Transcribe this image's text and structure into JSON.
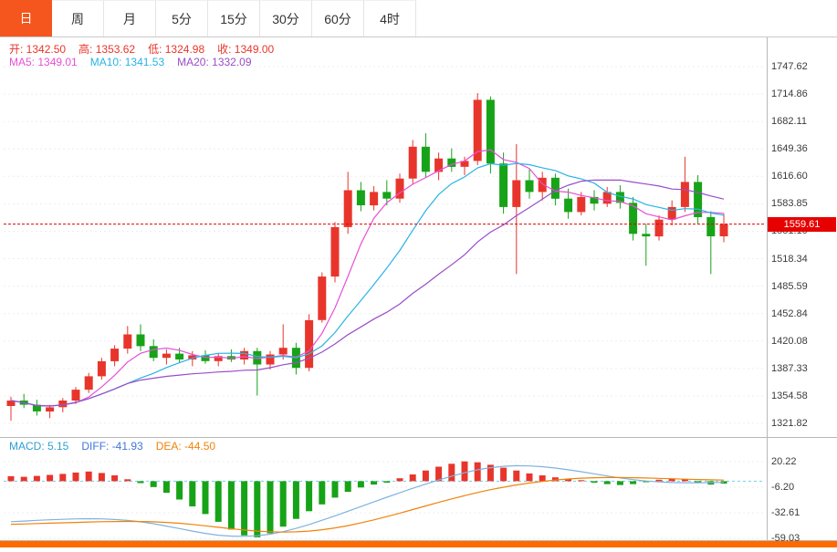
{
  "colors": {
    "up": "#e8352b",
    "down": "#17a318",
    "ohlc_text": "#e8352b",
    "ma5": "#e750d8",
    "ma10": "#29b3e6",
    "ma20": "#9a4dc8",
    "diff_line": "#7fb2e0",
    "dea_line": "#f0830a",
    "price_line": "#e60000",
    "tag_bg": "#e60000",
    "active_tab": "#f4561e",
    "macd_zero": "#6fd0e8",
    "bottom_bar": "#ff6a00"
  },
  "tabs": [
    {
      "key": "day",
      "label": "日",
      "active": true
    },
    {
      "key": "week",
      "label": "周",
      "active": false
    },
    {
      "key": "month",
      "label": "月",
      "active": false
    },
    {
      "key": "5min",
      "label": "5分",
      "active": false
    },
    {
      "key": "15min",
      "label": "15分",
      "active": false
    },
    {
      "key": "30min",
      "label": "30分",
      "active": false
    },
    {
      "key": "60min",
      "label": "60分",
      "active": false
    },
    {
      "key": "4hour",
      "label": "4时",
      "active": false
    }
  ],
  "info": {
    "ohlc": [
      {
        "key": "open",
        "label": "开",
        "value": "1342.50"
      },
      {
        "key": "high",
        "label": "高",
        "value": "1353.62"
      },
      {
        "key": "low",
        "label": "低",
        "value": "1324.98"
      },
      {
        "key": "close",
        "label": "收",
        "value": "1349.00"
      }
    ],
    "ma": [
      {
        "key": "ma5",
        "label": "MA5",
        "value": "1349.01",
        "color": "#e750d8"
      },
      {
        "key": "ma10",
        "label": "MA10",
        "value": "1341.53",
        "color": "#29b3e6"
      },
      {
        "key": "ma20",
        "label": "MA20",
        "value": "1332.09",
        "color": "#9a4dc8"
      }
    ],
    "macd": [
      {
        "key": "macd",
        "label": "MACD",
        "value": "5.15",
        "color": "#2e9fd3"
      },
      {
        "key": "diff",
        "label": "DIFF",
        "value": "-41.93",
        "color": "#4076d8"
      },
      {
        "key": "dea",
        "label": "DEA",
        "value": "-44.50",
        "color": "#f0830a"
      }
    ]
  },
  "axis": {
    "price_labels": [
      "1747.62",
      "1714.86",
      "1682.11",
      "1649.36",
      "1616.60",
      "1583.85",
      "1551.10",
      "1518.34",
      "1485.59",
      "1452.84",
      "1420.08",
      "1387.33",
      "1354.58",
      "1321.82"
    ],
    "macd_labels": [
      "20.22",
      "-6.20",
      "-32.61",
      "-59.03"
    ]
  },
  "chart": {
    "last_price_label": "1559.61"
  },
  "chart_data": {
    "type": "candlestick",
    "period": "日",
    "y_ticks": [
      1747.62,
      1714.86,
      1682.11,
      1649.36,
      1616.6,
      1583.85,
      1551.1,
      1518.34,
      1485.59,
      1452.84,
      1420.08,
      1387.33,
      1354.58,
      1321.82
    ],
    "last_price": 1559.61,
    "ma_periods": [
      5,
      10,
      20
    ],
    "candles": [
      [
        1342.5,
        1353.62,
        1324.98,
        1349.0
      ],
      [
        1349,
        1357,
        1340,
        1344
      ],
      [
        1344,
        1350,
        1331,
        1336
      ],
      [
        1336,
        1344,
        1328,
        1341
      ],
      [
        1341,
        1352,
        1335,
        1349
      ],
      [
        1349,
        1365,
        1345,
        1362
      ],
      [
        1362,
        1382,
        1358,
        1378
      ],
      [
        1378,
        1400,
        1374,
        1396
      ],
      [
        1396,
        1415,
        1390,
        1411
      ],
      [
        1411,
        1438,
        1405,
        1428
      ],
      [
        1428,
        1440,
        1408,
        1414
      ],
      [
        1414,
        1422,
        1396,
        1400
      ],
      [
        1400,
        1410,
        1392,
        1405
      ],
      [
        1405,
        1412,
        1394,
        1398
      ],
      [
        1398,
        1408,
        1390,
        1403
      ],
      [
        1403,
        1409,
        1393,
        1396
      ],
      [
        1396,
        1406,
        1390,
        1402
      ],
      [
        1402,
        1410,
        1395,
        1398
      ],
      [
        1398,
        1412,
        1392,
        1408
      ],
      [
        1408,
        1412,
        1355,
        1392
      ],
      [
        1392,
        1408,
        1386,
        1404
      ],
      [
        1404,
        1440,
        1398,
        1412
      ],
      [
        1412,
        1418,
        1380,
        1388
      ],
      [
        1388,
        1452,
        1384,
        1445
      ],
      [
        1445,
        1502,
        1442,
        1497
      ],
      [
        1497,
        1562,
        1490,
        1556
      ],
      [
        1556,
        1622,
        1548,
        1600
      ],
      [
        1600,
        1610,
        1575,
        1582
      ],
      [
        1582,
        1605,
        1576,
        1598
      ],
      [
        1598,
        1612,
        1582,
        1590
      ],
      [
        1590,
        1620,
        1585,
        1614
      ],
      [
        1614,
        1660,
        1608,
        1652
      ],
      [
        1652,
        1668,
        1616,
        1622
      ],
      [
        1622,
        1645,
        1612,
        1638
      ],
      [
        1638,
        1650,
        1622,
        1628
      ],
      [
        1628,
        1640,
        1618,
        1635
      ],
      [
        1635,
        1716,
        1630,
        1708
      ],
      [
        1708,
        1712,
        1620,
        1632
      ],
      [
        1632,
        1645,
        1572,
        1580
      ],
      [
        1580,
        1655,
        1500,
        1612
      ],
      [
        1612,
        1625,
        1590,
        1598
      ],
      [
        1598,
        1622,
        1588,
        1615
      ],
      [
        1615,
        1620,
        1582,
        1590
      ],
      [
        1590,
        1602,
        1566,
        1574
      ],
      [
        1574,
        1598,
        1570,
        1592
      ],
      [
        1592,
        1600,
        1576,
        1584
      ],
      [
        1584,
        1604,
        1580,
        1598
      ],
      [
        1598,
        1606,
        1578,
        1585
      ],
      [
        1585,
        1592,
        1540,
        1548
      ],
      [
        1548,
        1560,
        1510,
        1545
      ],
      [
        1545,
        1570,
        1540,
        1565
      ],
      [
        1565,
        1588,
        1558,
        1580
      ],
      [
        1580,
        1640,
        1574,
        1610
      ],
      [
        1610,
        1618,
        1560,
        1568
      ],
      [
        1568,
        1575,
        1500,
        1545
      ],
      [
        1545,
        1572,
        1538,
        1559.61
      ]
    ],
    "macd": {
      "ticks": [
        20.22,
        -6.2,
        -32.61,
        -59.03
      ],
      "hist": [
        5.2,
        4.5,
        5.5,
        6.5,
        7.5,
        9,
        10,
        8.5,
        6,
        2,
        -2,
        -6,
        -12,
        -19,
        -26,
        -34,
        -42,
        -50,
        -56,
        -58,
        -54,
        -47,
        -39,
        -31,
        -24,
        -17,
        -11,
        -6.5,
        -3.5,
        -1.5,
        3,
        7,
        11,
        15,
        18,
        20.5,
        19.5,
        17,
        14,
        11,
        8,
        6,
        4,
        2.5,
        1,
        -1.5,
        -3,
        -4,
        -3,
        -1,
        1.5,
        2.5,
        2,
        -2,
        -3.5,
        -2.5
      ],
      "diff": [
        -41.9,
        -41.2,
        -40.5,
        -39.9,
        -39.4,
        -39,
        -38.8,
        -39,
        -39.6,
        -40.6,
        -42,
        -44,
        -46.4,
        -49,
        -51.6,
        -54,
        -55.8,
        -56.8,
        -57,
        -56.4,
        -54.8,
        -52.2,
        -48.8,
        -44.8,
        -40.4,
        -35.8,
        -31,
        -26.2,
        -21.4,
        -16.6,
        -12,
        -7.4,
        -3,
        1.2,
        5.2,
        8.8,
        11.8,
        14,
        15.4,
        16,
        15.8,
        15,
        13.6,
        11.8,
        9.8,
        7.6,
        5.4,
        3.4,
        1.6,
        0.2,
        -0.8,
        -1.4,
        -1.6,
        -1.6,
        -1.4,
        -1.2
      ],
      "dea": [
        -44.5,
        -44.2,
        -43.8,
        -43.4,
        -43,
        -42.6,
        -42.2,
        -41.9,
        -41.7,
        -41.6,
        -41.7,
        -42,
        -42.6,
        -43.5,
        -44.7,
        -46.1,
        -47.6,
        -49.1,
        -50.5,
        -51.6,
        -52.3,
        -52.6,
        -52.4,
        -51.6,
        -50.2,
        -48.3,
        -45.9,
        -43.1,
        -40,
        -36.6,
        -33,
        -29.3,
        -25.6,
        -21.9,
        -18.3,
        -14.9,
        -11.7,
        -8.8,
        -6.2,
        -3.9,
        -1.9,
        -0.2,
        1.2,
        2.3,
        3.1,
        3.6,
        3.8,
        3.8,
        3.6,
        3.3,
        2.9,
        2.5,
        2.1,
        1.7,
        1.4,
        1.1
      ]
    }
  }
}
